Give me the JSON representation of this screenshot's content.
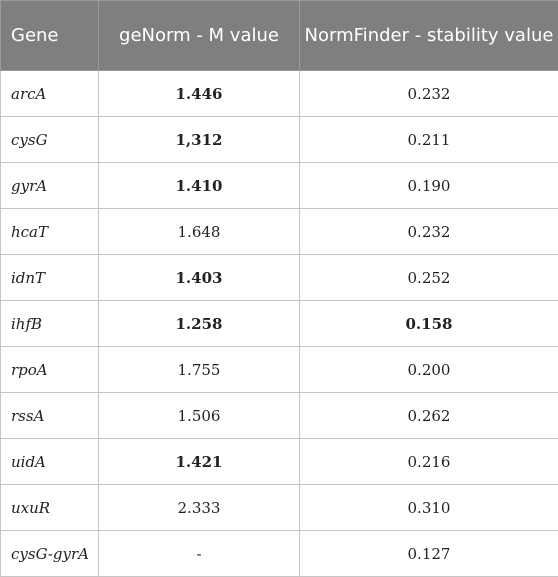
{
  "table": {
    "headers": {
      "gene": "Gene",
      "genorm": "geNorm - M value",
      "normfinder": "NormFinder - stability value"
    },
    "rows": [
      {
        "gene": "arcA",
        "m_value": "1.446",
        "m_bold": true,
        "stability": "0.232",
        "s_bold": false
      },
      {
        "gene": "cysG",
        "m_value": "1,312",
        "m_bold": true,
        "stability": "0.211",
        "s_bold": false
      },
      {
        "gene": "gyrA",
        "m_value": "1.410",
        "m_bold": true,
        "stability": "0.190",
        "s_bold": false
      },
      {
        "gene": "hcaT",
        "m_value": "1.648",
        "m_bold": false,
        "stability": "0.232",
        "s_bold": false
      },
      {
        "gene": "idnT",
        "m_value": "1.403",
        "m_bold": true,
        "stability": "0.252",
        "s_bold": false
      },
      {
        "gene": "ihfB",
        "m_value": "1.258",
        "m_bold": true,
        "stability": "0.158",
        "s_bold": true
      },
      {
        "gene": "rpoA",
        "m_value": "1.755",
        "m_bold": false,
        "stability": "0.200",
        "s_bold": false
      },
      {
        "gene": "rssA",
        "m_value": "1.506",
        "m_bold": false,
        "stability": "0.262",
        "s_bold": false
      },
      {
        "gene": "uidA",
        "m_value": "1.421",
        "m_bold": true,
        "stability": "0.216",
        "s_bold": false
      },
      {
        "gene": "uxuR",
        "m_value": "2.333",
        "m_bold": false,
        "stability": "0.310",
        "s_bold": false
      },
      {
        "gene": "cysG-gyrA",
        "m_value": "-",
        "m_bold": false,
        "stability": "0.127",
        "s_bold": false
      }
    ]
  },
  "colors": {
    "header_bg": "#7f7f7f",
    "header_text": "#ffffff",
    "grid": "#c6c6c6"
  }
}
